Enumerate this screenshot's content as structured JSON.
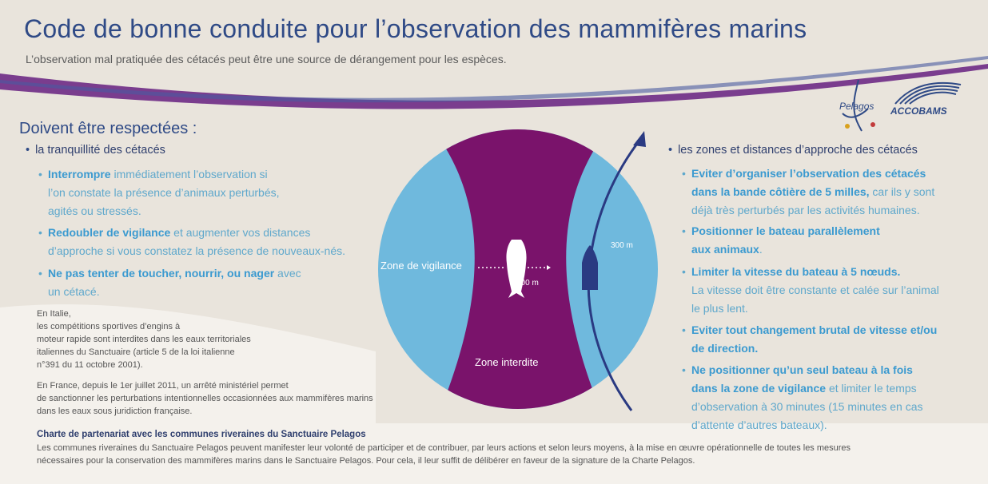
{
  "title": "Code de bonne conduite pour l’observation des mammifères marins",
  "subtitle": "L’observation mal pratiquée des cétacés peut être une source de dérangement pour les espèces.",
  "logos": {
    "pelagos": "Pelagos",
    "accobams": "ACCOBAMS"
  },
  "left": {
    "heading": "Doivent être respectées :",
    "bullet": "la tranquillité des cétacés",
    "items": [
      {
        "bold": "Interrompre",
        "line1": " immédiatement l’observation si",
        "line2": "l’on constate la présence d’animaux perturbés,",
        "line3": "agités ou stressés."
      },
      {
        "bold": "Redoubler de vigilance",
        "line1": " et augmenter vos distances",
        "line2": "d’approche si vous constatez la présence de nouveaux-nés.",
        "line3": ""
      },
      {
        "bold": "Ne pas tenter de toucher, nourrir, ou nager",
        "line1": " avec",
        "line2": "un cétacé.",
        "line3": ""
      }
    ]
  },
  "notes": {
    "italy": [
      "En Italie,",
      "les compétitions sportives d’engins à",
      "moteur rapide sont interdites dans les eaux territoriales",
      "italiennes du Sanctuaire (article 5 de la loi italienne",
      "n°391 du 11 octobre 2001)."
    ],
    "france": [
      "En France, depuis le 1er juillet 2011, un arrêté ministériel permet",
      "de sanctionner les perturbations intentionnelles occasionnées aux mammifères marins",
      "dans les eaux sous juridiction française."
    ]
  },
  "diagram": {
    "zone_vigilance": "Zone de vigilance",
    "zone_interdite": "Zone interdite",
    "dist_100": "100 m",
    "dist_300": "300 m",
    "colors": {
      "outer": "#6fb9dd",
      "inner": "#7a136b",
      "arrow": "#2a3a82"
    }
  },
  "right": {
    "bullet": "les zones et distances d’approche des cétacés",
    "items": [
      {
        "lines_bold": [
          "Eviter d’organiser l’observation des cétacés",
          "dans la bande côtière de 5 milles,"
        ],
        "tail_inline": " car ils y sont",
        "lines": [
          "déjà très perturbés par les activités humaines."
        ]
      },
      {
        "lines_bold": [
          "Positionner le bateau parallèlement",
          "aux animaux"
        ],
        "tail_inline": ".",
        "lines": []
      },
      {
        "lines_bold": [
          "Limiter la vitesse du bateau à 5 nœuds."
        ],
        "tail_inline": "",
        "lines": [
          "La vitesse doit être constante et calée sur l’animal",
          "le plus lent."
        ]
      },
      {
        "lines_bold": [
          "Eviter tout changement brutal de vitesse et/ou",
          "de direction."
        ],
        "tail_inline": "",
        "lines": []
      },
      {
        "lines_bold": [
          "Ne positionner qu’un seul bateau à la fois",
          "dans la zone de vigilance"
        ],
        "tail_inline": " et limiter le temps",
        "lines": [
          "d’observation à 30 minutes (15 minutes en cas",
          "d’attente d’autres bateaux)."
        ]
      }
    ]
  },
  "charter": {
    "title": "Charte de partenariat avec les communes riveraines du Sanctuaire Pelagos",
    "text": "Les communes riveraines du Sanctuaire Pelagos peuvent manifester leur volonté de participer et de contribuer, par leurs actions et selon leurs moyens, à la mise en œuvre opérationnelle de toutes les mesures nécessaires pour la conservation des mammifères marins dans le Sanctuaire Pelagos. Pour cela, il leur suffit de délibérer en faveur de la signature de la Charte Pelagos."
  }
}
